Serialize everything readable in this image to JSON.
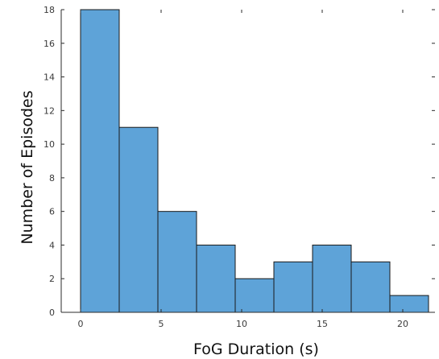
{
  "chart_data": {
    "type": "bar",
    "subtype": "histogram",
    "title": "",
    "xlabel": "FoG Duration (s)",
    "ylabel": "Number of Episodes",
    "bin_edges": [
      0,
      2.4,
      4.8,
      7.2,
      9.6,
      12.0,
      14.4,
      16.8,
      19.2,
      21.6
    ],
    "values": [
      18,
      11,
      6,
      4,
      2,
      3,
      4,
      3,
      1
    ],
    "xlim": [
      -1.2,
      22.0
    ],
    "ylim": [
      0,
      18
    ],
    "xticks": [
      0,
      5,
      10,
      15,
      20
    ],
    "yticks": [
      0,
      2,
      4,
      6,
      8,
      10,
      12,
      14,
      16,
      18
    ],
    "grid": false,
    "legend": "none",
    "bar_color": "#5ea3d8",
    "edge_color": "#1a1a1a"
  }
}
